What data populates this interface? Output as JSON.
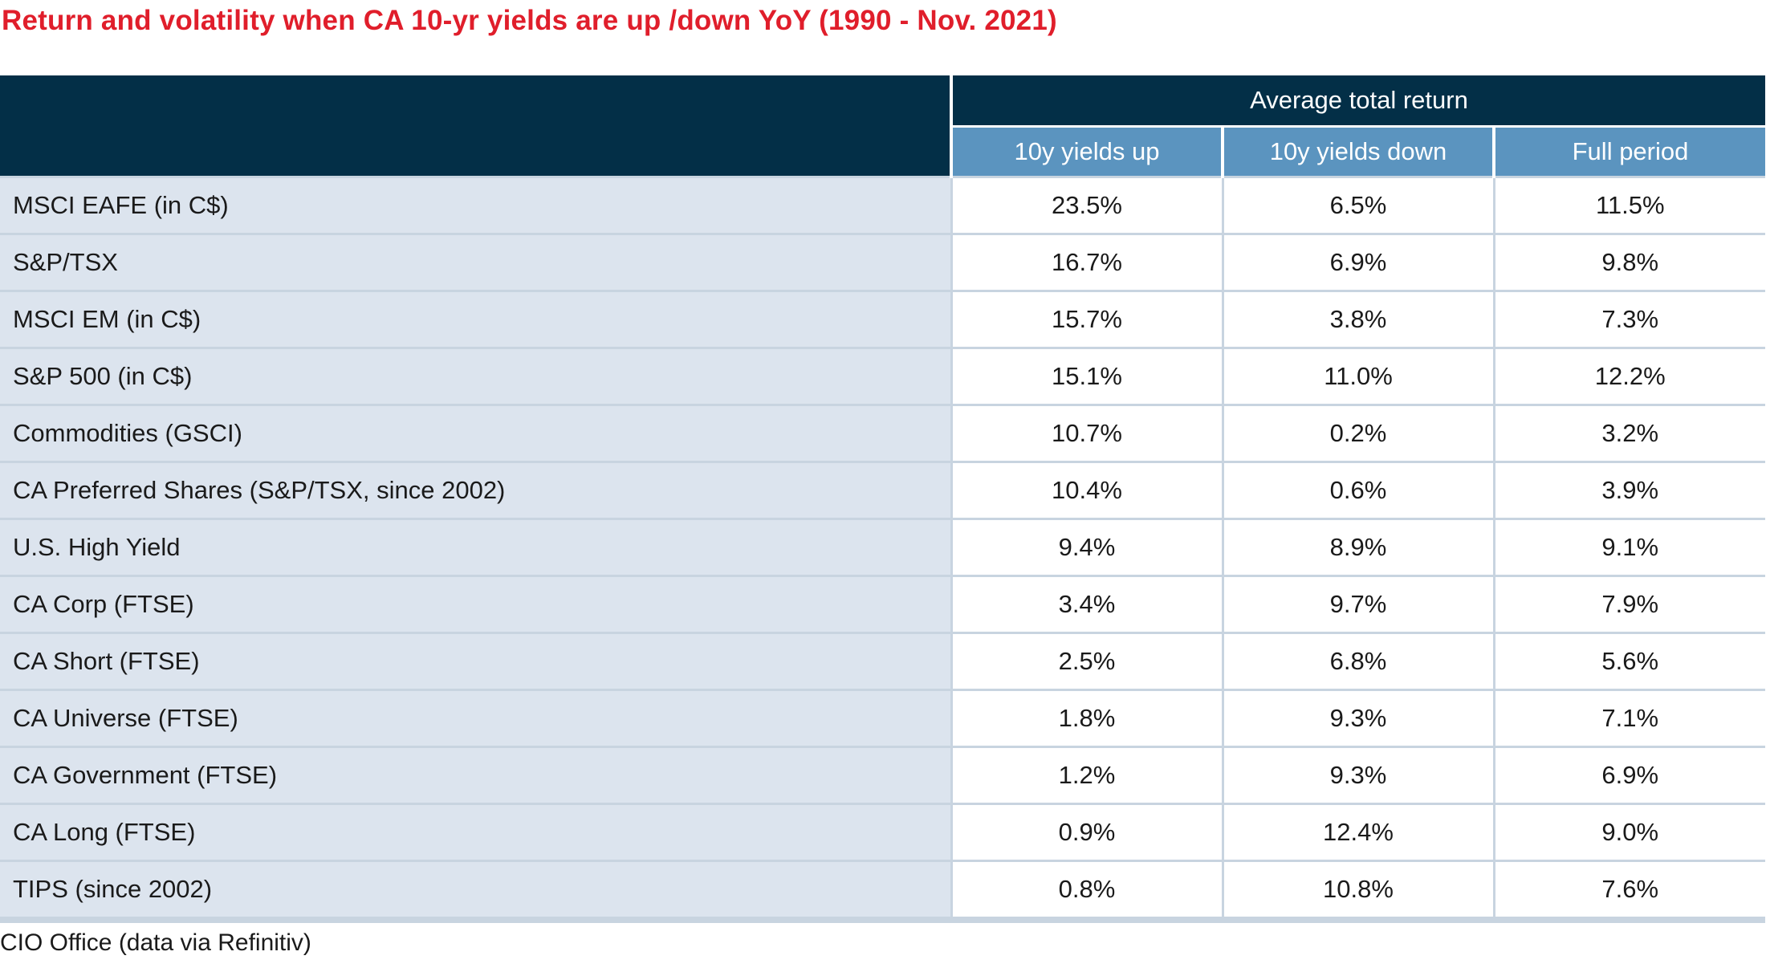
{
  "title": "Return and volatility when CA 10-yr yields are up /down YoY (1990 - Nov. 2021)",
  "source": "CIO Office (data via Refinitiv)",
  "colors": {
    "title": "#e01e2b",
    "header_dark": "#032f47",
    "header_sub": "#5b94bf",
    "label_bg": "#dce4ee"
  },
  "chart_data": {
    "type": "table",
    "title": "Return and volatility when CA 10-yr yields are up /down YoY (1990 - Nov. 2021)",
    "group_header": "Average total return",
    "columns": [
      "10y yields up",
      "10y yields down",
      "Full period"
    ],
    "rows": [
      {
        "label": "MSCI EAFE (in C$)",
        "values": [
          "23.5%",
          "6.5%",
          "11.5%"
        ]
      },
      {
        "label": "S&P/TSX",
        "values": [
          "16.7%",
          "6.9%",
          "9.8%"
        ]
      },
      {
        "label": "MSCI EM (in C$)",
        "values": [
          "15.7%",
          "3.8%",
          "7.3%"
        ]
      },
      {
        "label": "S&P 500 (in C$)",
        "values": [
          "15.1%",
          "11.0%",
          "12.2%"
        ]
      },
      {
        "label": "Commodities (GSCI)",
        "values": [
          "10.7%",
          "0.2%",
          "3.2%"
        ]
      },
      {
        "label": "CA Preferred Shares (S&P/TSX, since 2002)",
        "values": [
          "10.4%",
          "0.6%",
          "3.9%"
        ]
      },
      {
        "label": "U.S. High Yield",
        "values": [
          "9.4%",
          "8.9%",
          "9.1%"
        ]
      },
      {
        "label": "CA Corp (FTSE)",
        "values": [
          "3.4%",
          "9.7%",
          "7.9%"
        ]
      },
      {
        "label": "CA Short (FTSE)",
        "values": [
          "2.5%",
          "6.8%",
          "5.6%"
        ]
      },
      {
        "label": "CA Universe (FTSE)",
        "values": [
          "1.8%",
          "9.3%",
          "7.1%"
        ]
      },
      {
        "label": "CA Government (FTSE)",
        "values": [
          "1.2%",
          "9.3%",
          "6.9%"
        ]
      },
      {
        "label": "CA Long (FTSE)",
        "values": [
          "0.9%",
          "12.4%",
          "9.0%"
        ]
      },
      {
        "label": "TIPS (since 2002)",
        "values": [
          "0.8%",
          "10.8%",
          "7.6%"
        ]
      }
    ]
  }
}
